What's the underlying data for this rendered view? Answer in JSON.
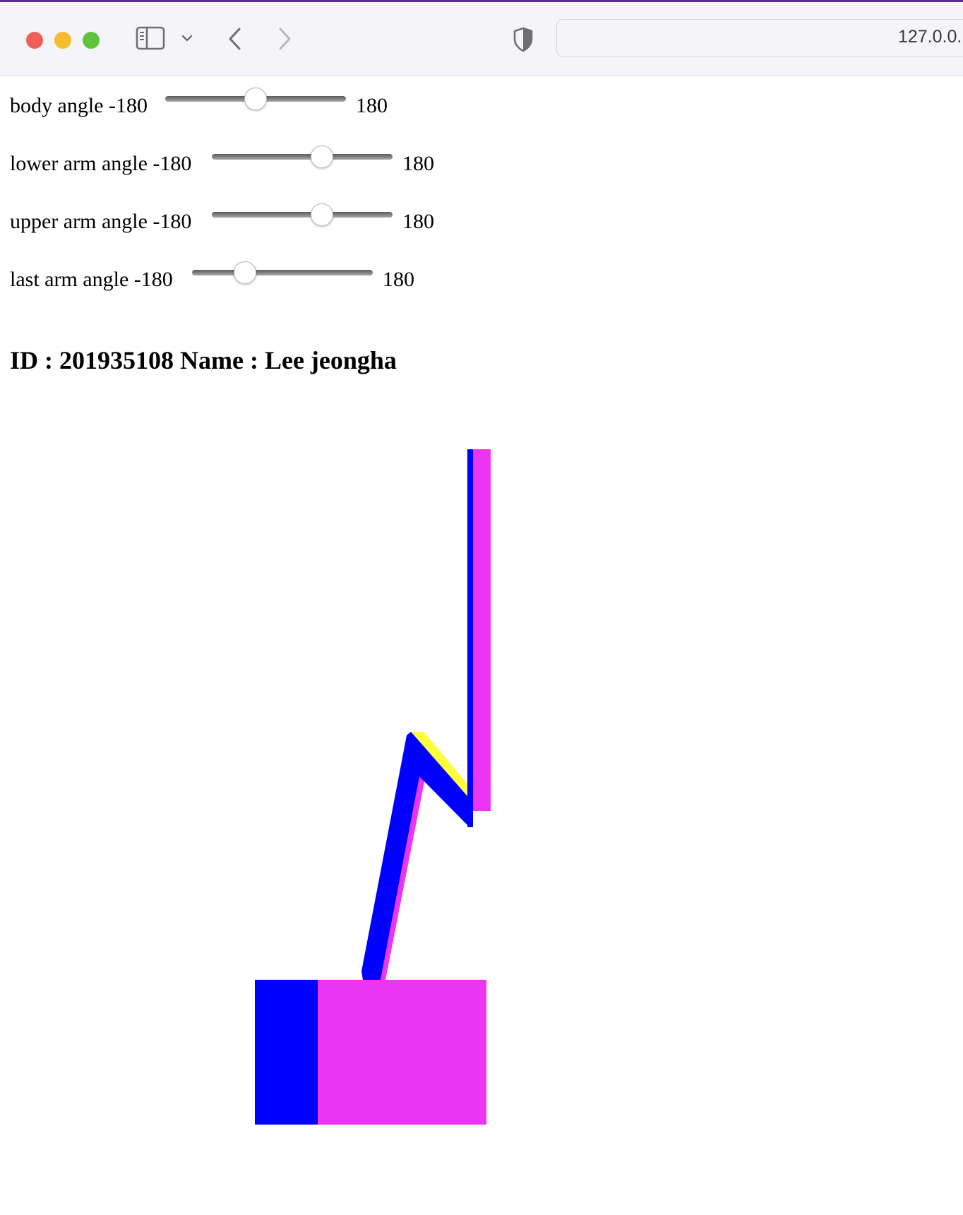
{
  "browser": {
    "url": "127.0.0."
  },
  "sliders": [
    {
      "label": "body angle -180",
      "max_label": "180",
      "min": -180,
      "max": 180,
      "value": 0
    },
    {
      "label": "lower arm angle -180",
      "max_label": "180",
      "min": -180,
      "max": 180,
      "value": 45
    },
    {
      "label": "upper arm angle -180",
      "max_label": "180",
      "min": -180,
      "max": 180,
      "value": 45
    },
    {
      "label": "last arm angle -180",
      "max_label": "180",
      "min": -180,
      "max": 180,
      "value": -85
    }
  ],
  "info": {
    "text": "ID : 201935108 Name : Lee jeongha"
  },
  "colors": {
    "magenta": "#ec35f3",
    "blue": "#0000ff",
    "yellow": "#ffff3c"
  }
}
